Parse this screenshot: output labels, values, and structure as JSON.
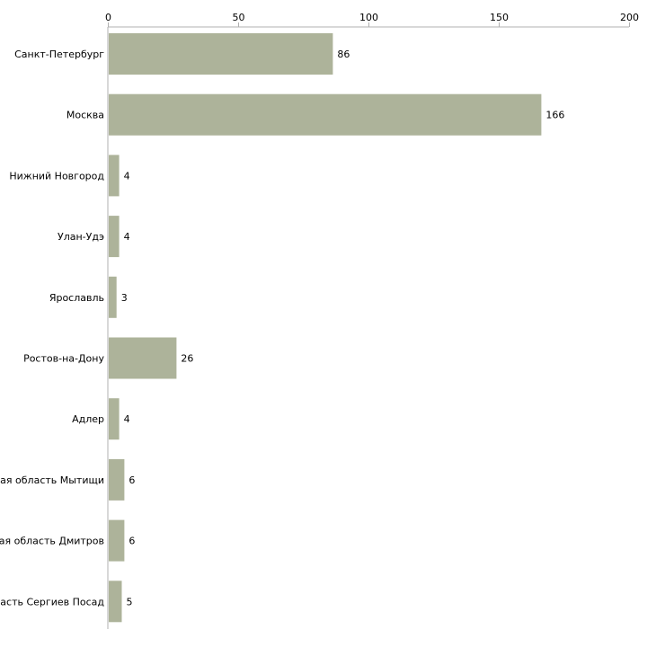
{
  "chart_data": {
    "type": "bar",
    "orientation": "horizontal",
    "categories": [
      "Санкт-Петербург",
      "Москва",
      "Нижний Новгород",
      "Улан-Удэ",
      "Ярославль",
      "Ростов-на-Дону",
      "Адлер",
      "Московская область Мытищи",
      "Московская область Дмитров",
      "Московская область Сергиев Посад"
    ],
    "values": [
      86,
      166,
      4,
      4,
      3,
      26,
      4,
      6,
      6,
      5
    ],
    "xlim": [
      0,
      200
    ],
    "xticks": [
      0,
      50,
      100,
      150,
      200
    ],
    "xtick_labels": [
      "0",
      "50",
      "100",
      "150",
      "200"
    ],
    "title": "",
    "xlabel": "",
    "ylabel": "",
    "grid": false,
    "show_value_labels": true,
    "bar_color": "#adb39a",
    "axis_color": "#b0b0b0",
    "text_color": "#000000"
  }
}
